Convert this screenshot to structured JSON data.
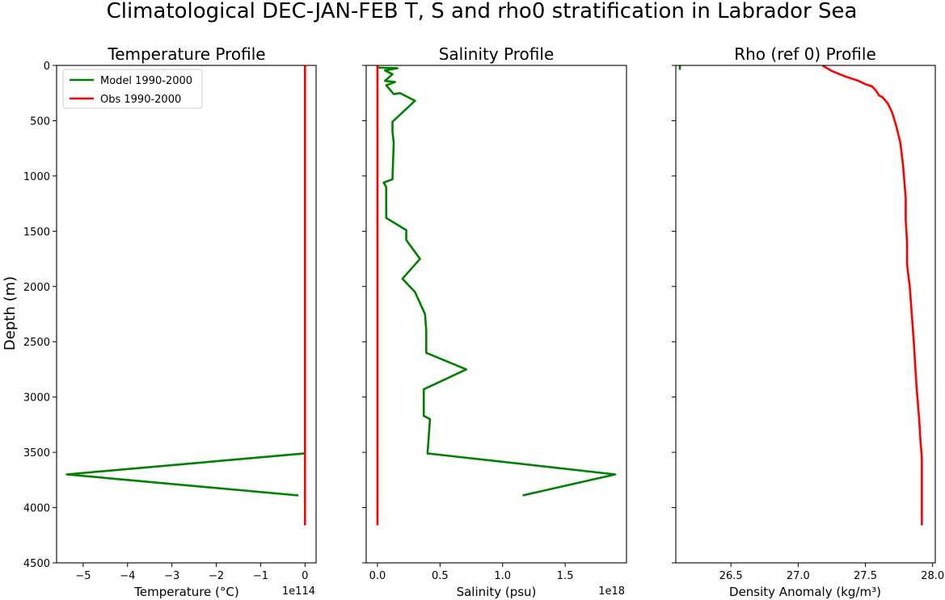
{
  "figure_title": "Climatological DEC-JAN-FEB T, S and rho0 stratification in Labrador Sea",
  "colors": {
    "model": "#008000",
    "obs": "#ff0000",
    "axis": "#000000"
  },
  "chart_data": [
    {
      "type": "line",
      "title": "Temperature Profile",
      "xlabel": "Temperature (°C)",
      "ylabel": "Depth (m)",
      "offset_text": "1e114",
      "xlim": [
        -5.6,
        0.25
      ],
      "ylim": [
        4500,
        0
      ],
      "xticks": [
        -5,
        -4,
        -3,
        -2,
        -1,
        0
      ],
      "xtick_labels": [
        "−5",
        "−4",
        "−3",
        "−2",
        "−1",
        "0"
      ],
      "yticks": [
        0,
        500,
        1000,
        1500,
        2000,
        2500,
        3000,
        3500,
        4000,
        4500
      ],
      "legend": {
        "placement": "upper-left",
        "entries": [
          "Model 1990-2000",
          "Obs 1990-2000"
        ]
      },
      "series": [
        {
          "name": "Model 1990-2000",
          "color": "#008000",
          "x": [
            0,
            0,
            0,
            0,
            0,
            0,
            0,
            0,
            0,
            0,
            0,
            -5.37,
            -0.15
          ],
          "y": [
            0,
            300,
            600,
            1000,
            1400,
            1800,
            2200,
            2600,
            3000,
            3400,
            3510,
            3700,
            3890
          ]
        },
        {
          "name": "Obs 1990-2000",
          "color": "#ff0000",
          "x": [
            0,
            0,
            0,
            0,
            0,
            0,
            0,
            0,
            0
          ],
          "y": [
            0,
            500,
            1000,
            1500,
            2000,
            2500,
            3000,
            3500,
            4160
          ]
        }
      ]
    },
    {
      "type": "line",
      "title": "Salinity Profile",
      "xlabel": "Salinity (psu)",
      "offset_text": "1e18",
      "xlim": [
        -0.09,
        1.99
      ],
      "ylim": [
        4500,
        0
      ],
      "xticks": [
        0.0,
        0.5,
        1.0,
        1.5
      ],
      "xtick_labels": [
        "0.0",
        "0.5",
        "1.0",
        "1.5"
      ],
      "series": [
        {
          "name": "Model 1990-2000",
          "color": "#008000",
          "x": [
            0.0,
            0.16,
            0.06,
            0.12,
            0.06,
            0.14,
            0.07,
            0.13,
            0.18,
            0.3,
            0.12,
            0.12,
            0.13,
            0.12,
            0.05,
            0.07,
            0.07,
            0.23,
            0.23,
            0.34,
            0.2,
            0.3,
            0.38,
            0.39,
            0.39,
            0.71,
            0.37,
            0.37,
            0.42,
            0.4,
            1.9,
            1.16
          ],
          "y": [
            20,
            25,
            45,
            80,
            140,
            150,
            180,
            260,
            250,
            320,
            510,
            600,
            700,
            1030,
            1060,
            1100,
            1380,
            1490,
            1580,
            1750,
            1930,
            2050,
            2250,
            2400,
            2600,
            2750,
            2930,
            3170,
            3200,
            3510,
            3700,
            3890
          ]
        },
        {
          "name": "Obs 1990-2000",
          "color": "#ff0000",
          "x": [
            0,
            0,
            0,
            0,
            0,
            0,
            0,
            0,
            0
          ],
          "y": [
            0,
            500,
            1000,
            1500,
            2000,
            2500,
            3000,
            3500,
            4160
          ]
        }
      ]
    },
    {
      "type": "line",
      "title": "Rho (ref 0) Profile",
      "xlabel": "Density Anomaly (kg/m³)",
      "xlim": [
        26.09,
        28.02
      ],
      "ylim": [
        4500,
        0
      ],
      "xticks": [
        26.5,
        27.0,
        27.5,
        28.0
      ],
      "xtick_labels": [
        "26.5",
        "27.0",
        "27.5",
        "28.0"
      ],
      "series": [
        {
          "name": "Model 1990-2000",
          "color": "#008000",
          "x": [
            26.12,
            26.12,
            26.12
          ],
          "y": [
            0,
            20,
            40
          ]
        },
        {
          "name": "Obs 1990-2000",
          "color": "#ff0000",
          "x": [
            27.18,
            27.25,
            27.35,
            27.45,
            27.5,
            27.55,
            27.58,
            27.6,
            27.63,
            27.67,
            27.7,
            27.73,
            27.76,
            27.78,
            27.8,
            27.8,
            27.81,
            27.81,
            27.83,
            27.86,
            27.88,
            27.9,
            27.91,
            27.92,
            27.92,
            27.92
          ],
          "y": [
            0,
            50,
            100,
            140,
            170,
            190,
            230,
            270,
            290,
            350,
            430,
            550,
            700,
            900,
            1200,
            1400,
            1600,
            1800,
            2000,
            2500,
            2900,
            3200,
            3400,
            3550,
            3800,
            4160
          ]
        }
      ]
    }
  ]
}
